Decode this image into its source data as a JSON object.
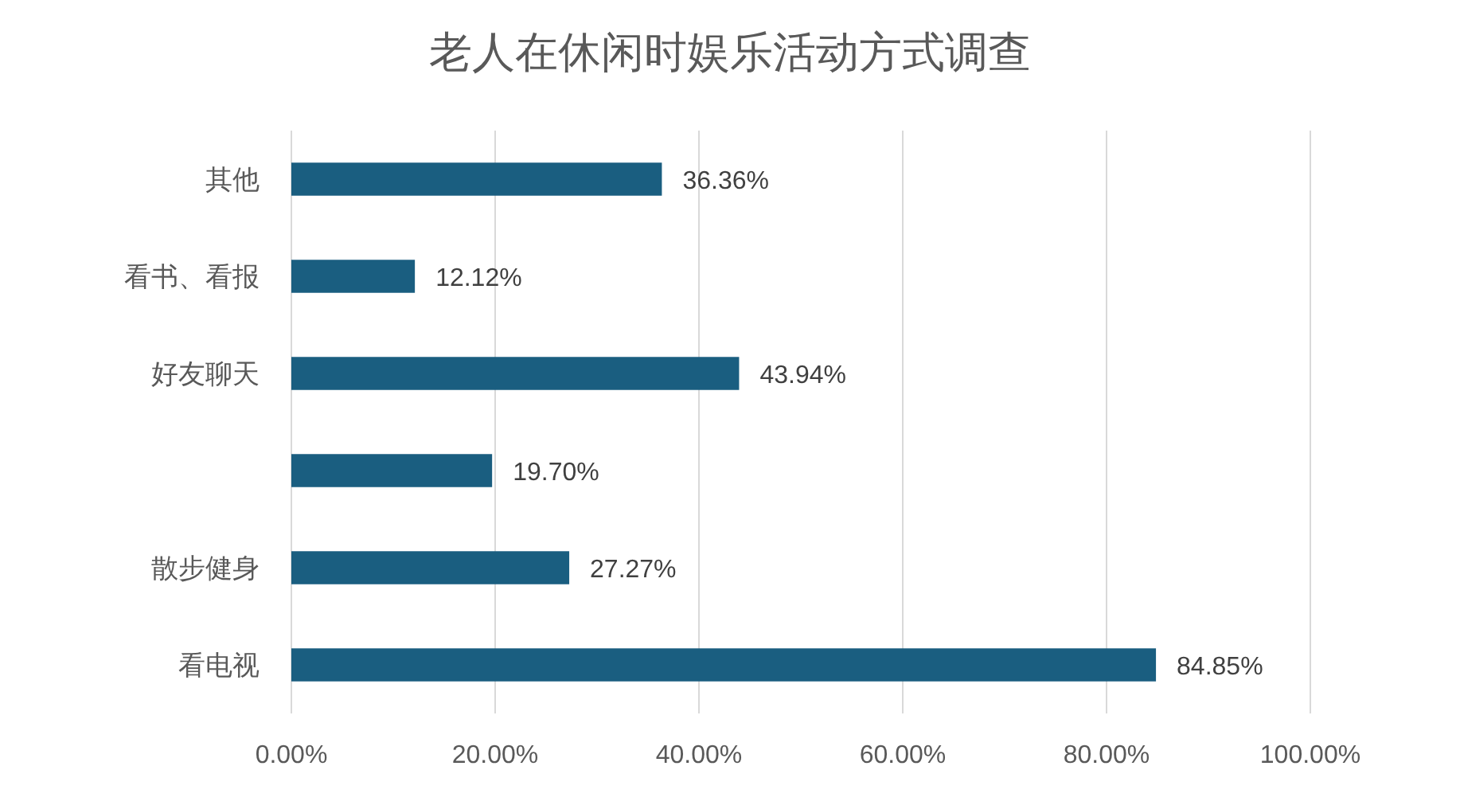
{
  "chart_data": {
    "type": "bar",
    "orientation": "horizontal",
    "title": "老人在休闲时娱乐活动方式调查",
    "categories": [
      "其他",
      "看书、看报",
      "好友聊天",
      null,
      "散步健身",
      "看电视"
    ],
    "values": [
      36.36,
      12.12,
      43.94,
      19.7,
      27.27,
      84.85
    ],
    "value_labels": [
      "36.36%",
      "12.12%",
      "43.94%",
      "19.70%",
      "27.27%",
      "84.85%"
    ],
    "color": "#1a5e80",
    "xlim": [
      0,
      100
    ],
    "xticks": [
      {
        "value": 0,
        "label": "0.00%"
      },
      {
        "value": 20,
        "label": "20.00%"
      },
      {
        "value": 40,
        "label": "40.00%"
      },
      {
        "value": 60,
        "label": "60.00%"
      },
      {
        "value": 80,
        "label": "80.00%"
      },
      {
        "value": 100,
        "label": "100.00%"
      }
    ],
    "grid": "x"
  }
}
